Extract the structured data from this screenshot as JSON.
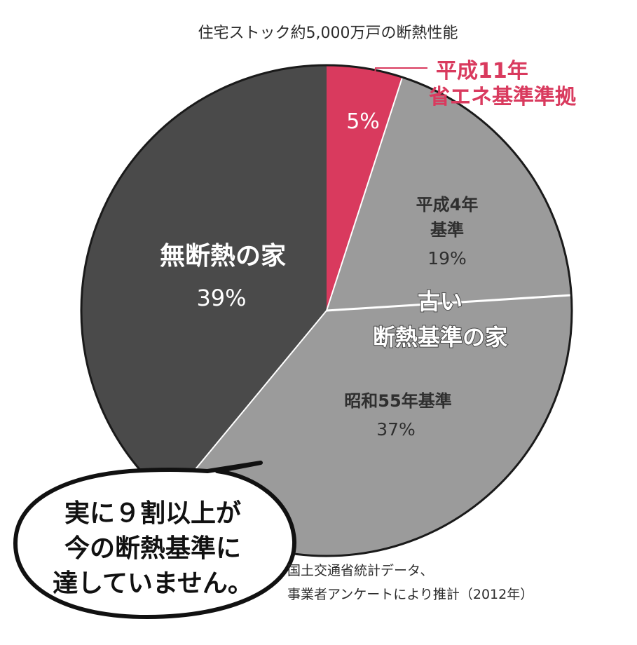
{
  "chart_data": {
    "type": "pie",
    "title": "住宅ストック約5,000万戸の断熱性能",
    "slices": [
      {
        "label": "平成11年 省エネ基準準拠",
        "label_lines": [
          "平成11年",
          "省エネ基準準拠"
        ],
        "value": 5,
        "display": "5%",
        "color": "#d93a5e"
      },
      {
        "label": "平成4年 基準",
        "label_lines": [
          "平成4年",
          "基準"
        ],
        "value": 19,
        "display": "19%",
        "color": "#9b9b9b"
      },
      {
        "label": "昭和55年基準",
        "label_lines": [
          "昭和55年基準"
        ],
        "value": 37,
        "display": "37%",
        "color": "#9b9b9b"
      },
      {
        "label": "無断熱の家",
        "label_lines": [
          "無断熱の家"
        ],
        "value": 39,
        "display": "39%",
        "color": "#4a4a4a"
      }
    ],
    "group_label": [
      "古い",
      "断熱基準の家"
    ],
    "divider_color": "#ffffff",
    "outline_color": "#1a1a1a"
  },
  "bubble": {
    "lines": [
      "実に９割以上が",
      "今の断熱基準に",
      "達していません。"
    ]
  },
  "source": {
    "lines": [
      "国土交通省統計データ、",
      "事業者アンケートにより推計（2012年）"
    ]
  }
}
